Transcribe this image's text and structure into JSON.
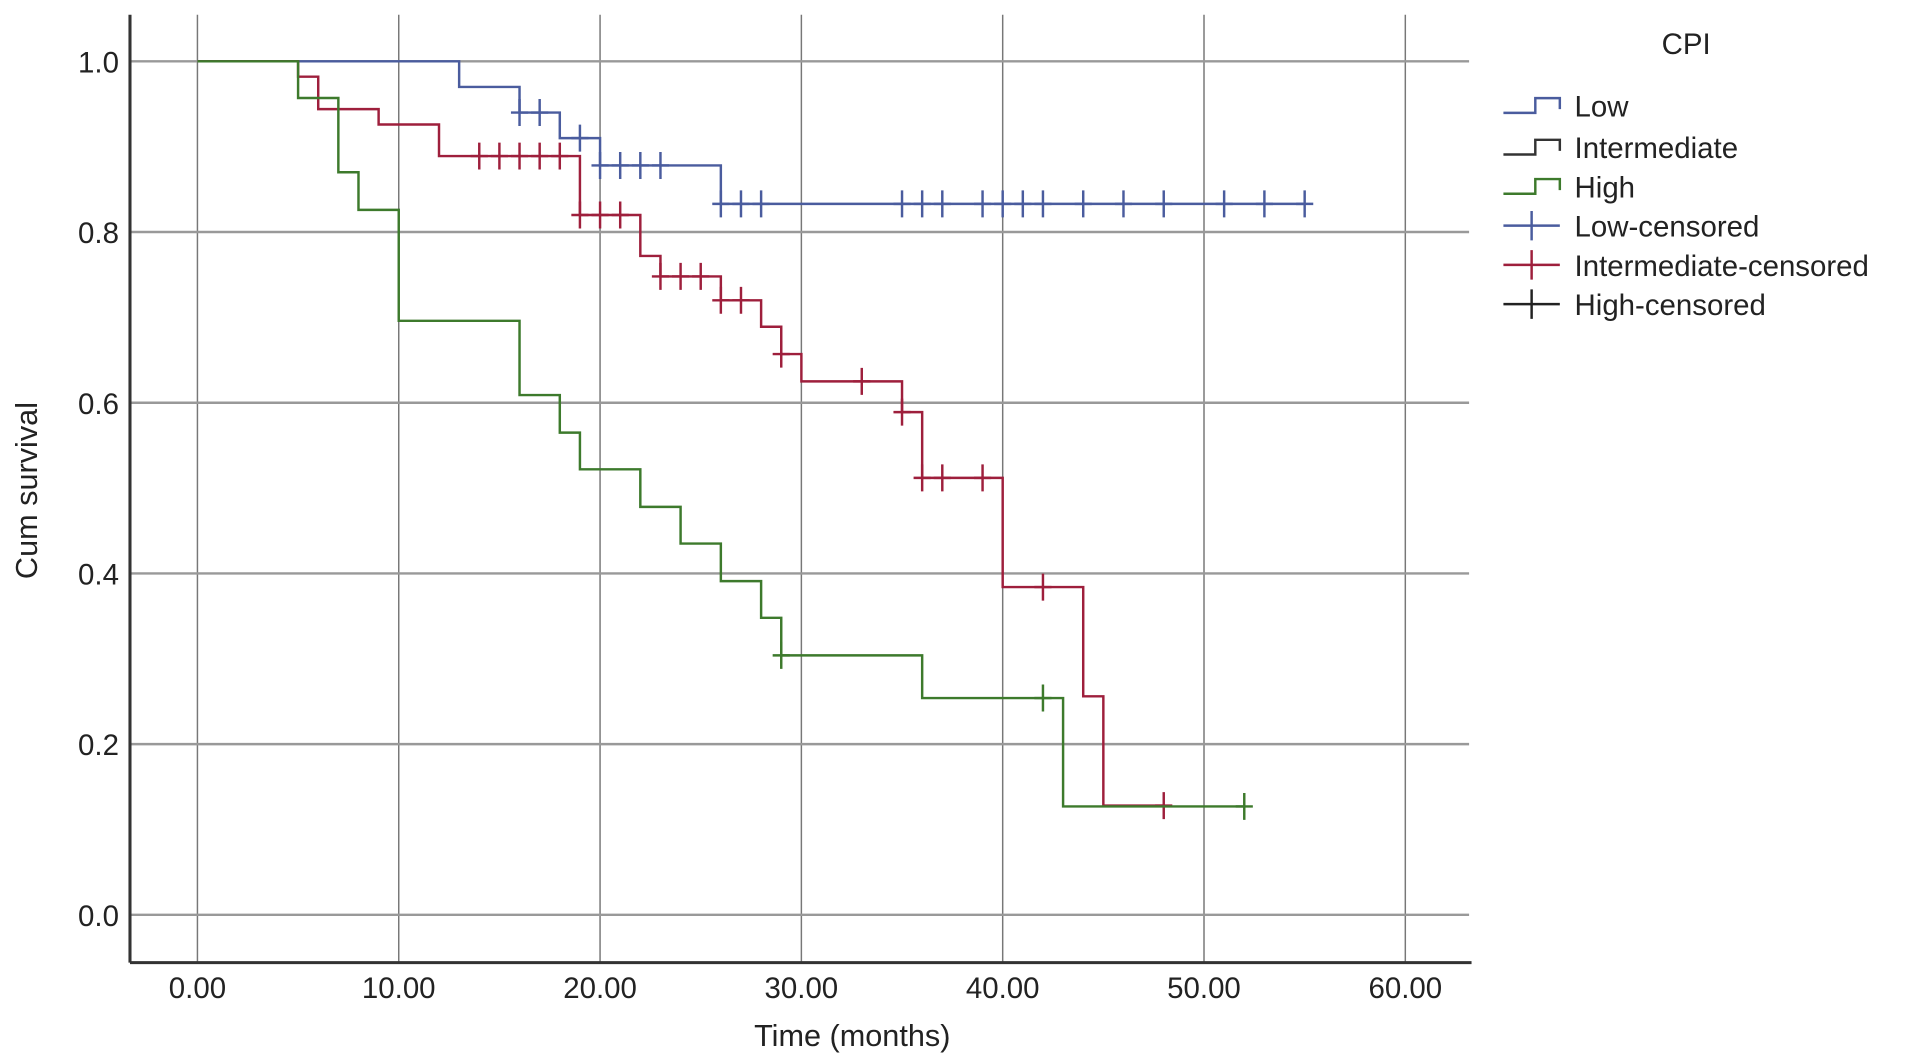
{
  "chart_data": {
    "type": "line",
    "subtype": "kaplan-meier step",
    "xlabel": "Time (months)",
    "ylabel": "Cum survival",
    "xlim": [
      -3.3,
      63.3
    ],
    "ylim": [
      -0.056,
      1.055
    ],
    "xticks": [
      "0.00",
      "10.00",
      "20.00",
      "30.00",
      "40.00",
      "50.00",
      "60.00"
    ],
    "xtick_values": [
      0,
      10,
      20,
      30,
      40,
      50,
      60
    ],
    "yticks": [
      "0.0",
      "0.2",
      "0.4",
      "0.6",
      "0.8",
      "1.0"
    ],
    "ytick_values": [
      0,
      0.2,
      0.4,
      0.6,
      0.8,
      1.0
    ],
    "grid": true,
    "legend_title": "CPI",
    "legend_position": "right",
    "legend": [
      "Low",
      "Intermediate",
      "High",
      "Low-censored",
      "Intermediate-censored",
      "High-censored"
    ],
    "series": [
      {
        "name": "Low",
        "color": "#4a5c9e",
        "steps": [
          [
            0,
            1.0
          ],
          [
            13,
            0.97
          ],
          [
            16,
            0.94
          ],
          [
            18,
            0.91
          ],
          [
            20,
            0.878
          ],
          [
            26,
            0.833
          ]
        ],
        "end": 55,
        "censored": [
          [
            16,
            0.94
          ],
          [
            17,
            0.94
          ],
          [
            19,
            0.91
          ],
          [
            20,
            0.878
          ],
          [
            21,
            0.878
          ],
          [
            22,
            0.878
          ],
          [
            23,
            0.878
          ],
          [
            26,
            0.833
          ],
          [
            27,
            0.833
          ],
          [
            28,
            0.833
          ],
          [
            35,
            0.833
          ],
          [
            36,
            0.833
          ],
          [
            37,
            0.833
          ],
          [
            39,
            0.833
          ],
          [
            40,
            0.833
          ],
          [
            41,
            0.833
          ],
          [
            42,
            0.833
          ],
          [
            44,
            0.833
          ],
          [
            46,
            0.833
          ],
          [
            48,
            0.833
          ],
          [
            51,
            0.833
          ],
          [
            53,
            0.833
          ],
          [
            55,
            0.833
          ]
        ]
      },
      {
        "name": "Intermediate",
        "color": "#9e1f3c",
        "steps": [
          [
            0,
            1.0
          ],
          [
            5,
            0.982
          ],
          [
            6,
            0.944
          ],
          [
            9,
            0.926
          ],
          [
            12,
            0.889
          ],
          [
            19,
            0.82
          ],
          [
            22,
            0.772
          ],
          [
            23,
            0.748
          ],
          [
            26,
            0.72
          ],
          [
            28,
            0.689
          ],
          [
            29,
            0.657
          ],
          [
            30,
            0.625
          ],
          [
            35,
            0.589
          ],
          [
            36,
            0.512
          ],
          [
            40,
            0.384
          ],
          [
            44,
            0.256
          ],
          [
            45,
            0.128
          ]
        ],
        "end": 48,
        "censored": [
          [
            14,
            0.889
          ],
          [
            15,
            0.889
          ],
          [
            16,
            0.889
          ],
          [
            17,
            0.889
          ],
          [
            18,
            0.889
          ],
          [
            19,
            0.82
          ],
          [
            20,
            0.82
          ],
          [
            21,
            0.82
          ],
          [
            23,
            0.748
          ],
          [
            24,
            0.748
          ],
          [
            25,
            0.748
          ],
          [
            26,
            0.72
          ],
          [
            27,
            0.72
          ],
          [
            29,
            0.657
          ],
          [
            33,
            0.625
          ],
          [
            35,
            0.589
          ],
          [
            36,
            0.512
          ],
          [
            37,
            0.512
          ],
          [
            39,
            0.512
          ],
          [
            42,
            0.384
          ],
          [
            48,
            0.128
          ]
        ]
      },
      {
        "name": "High",
        "color": "#3d7a2c",
        "steps": [
          [
            0,
            1.0
          ],
          [
            5,
            0.957
          ],
          [
            7,
            0.87
          ],
          [
            8,
            0.826
          ],
          [
            10,
            0.696
          ],
          [
            16,
            0.609
          ],
          [
            18,
            0.565
          ],
          [
            19,
            0.522
          ],
          [
            22,
            0.478
          ],
          [
            24,
            0.435
          ],
          [
            26,
            0.391
          ],
          [
            28,
            0.348
          ],
          [
            29,
            0.304
          ],
          [
            36,
            0.254
          ],
          [
            43,
            0.127
          ]
        ],
        "end": 52,
        "censored": [
          [
            29,
            0.304
          ],
          [
            42,
            0.254
          ],
          [
            52,
            0.127
          ]
        ]
      }
    ]
  }
}
